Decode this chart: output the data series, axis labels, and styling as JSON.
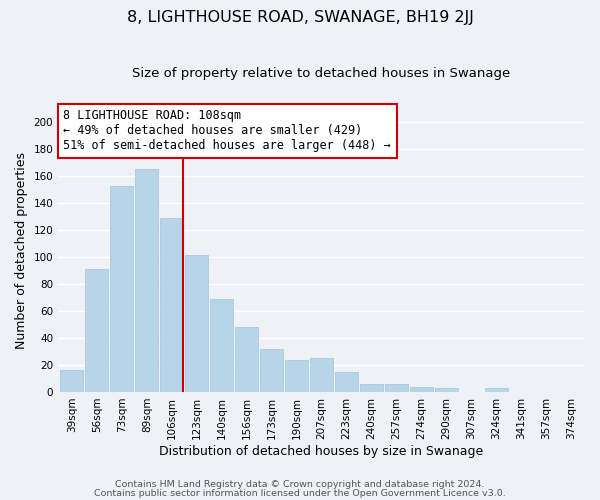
{
  "title": "8, LIGHTHOUSE ROAD, SWANAGE, BH19 2JJ",
  "subtitle": "Size of property relative to detached houses in Swanage",
  "xlabel": "Distribution of detached houses by size in Swanage",
  "ylabel": "Number of detached properties",
  "categories": [
    "39sqm",
    "56sqm",
    "73sqm",
    "89sqm",
    "106sqm",
    "123sqm",
    "140sqm",
    "156sqm",
    "173sqm",
    "190sqm",
    "207sqm",
    "223sqm",
    "240sqm",
    "257sqm",
    "274sqm",
    "290sqm",
    "307sqm",
    "324sqm",
    "341sqm",
    "357sqm",
    "374sqm"
  ],
  "values": [
    16,
    91,
    152,
    165,
    129,
    101,
    69,
    48,
    32,
    24,
    25,
    15,
    6,
    6,
    4,
    3,
    0,
    3,
    0,
    0,
    0
  ],
  "bar_color": "#b8d4e8",
  "bar_edge_color": "#a0c4d8",
  "vline_x_index": 4,
  "vline_color": "#cc0000",
  "annotation_text": "8 LIGHTHOUSE ROAD: 108sqm\n← 49% of detached houses are smaller (429)\n51% of semi-detached houses are larger (448) →",
  "annotation_box_color": "#ffffff",
  "annotation_box_edge": "#cc0000",
  "ylim": [
    0,
    210
  ],
  "yticks": [
    0,
    20,
    40,
    60,
    80,
    100,
    120,
    140,
    160,
    180,
    200
  ],
  "footer_line1": "Contains HM Land Registry data © Crown copyright and database right 2024.",
  "footer_line2": "Contains public sector information licensed under the Open Government Licence v3.0.",
  "background_color": "#eef2f7",
  "grid_color": "#ffffff",
  "title_fontsize": 11.5,
  "subtitle_fontsize": 9.5,
  "axis_label_fontsize": 9,
  "tick_fontsize": 7.5,
  "annotation_fontsize": 8.5,
  "footer_fontsize": 6.8
}
